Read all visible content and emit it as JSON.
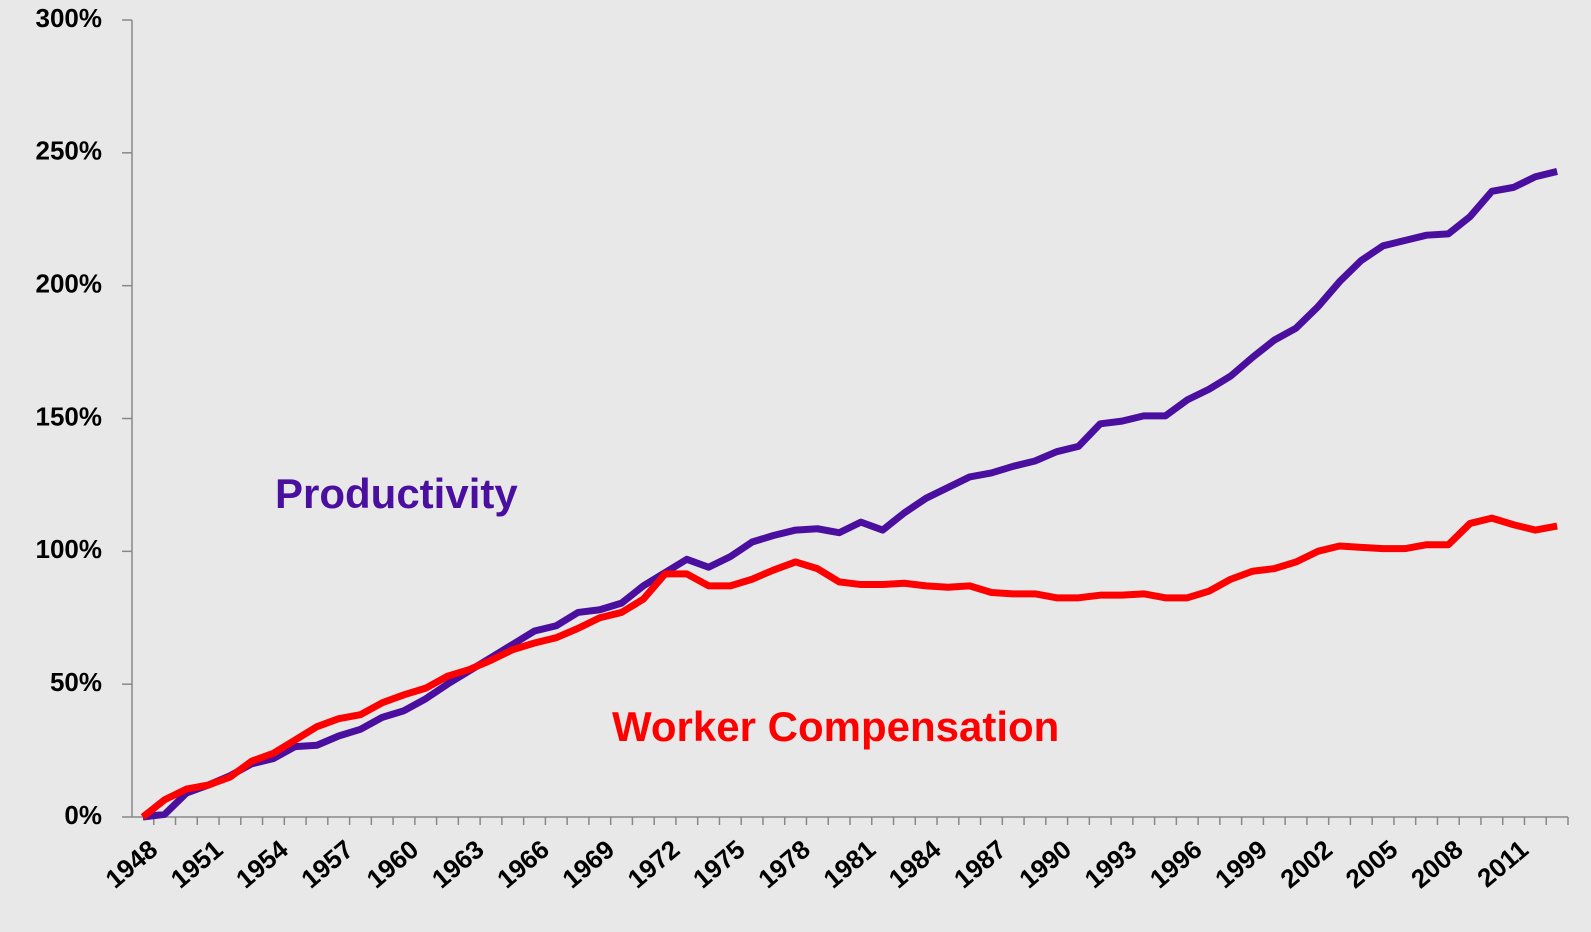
{
  "chart_data": {
    "type": "line",
    "categories": [
      "1948",
      null,
      null,
      "1951",
      null,
      null,
      "1954",
      null,
      null,
      "1957",
      null,
      null,
      "1960",
      null,
      null,
      "1963",
      null,
      null,
      "1966",
      null,
      null,
      "1969",
      null,
      null,
      "1972",
      null,
      null,
      "1975",
      null,
      null,
      "1978",
      null,
      null,
      "1981",
      null,
      null,
      "1984",
      null,
      null,
      "1987",
      null,
      null,
      "1990",
      null,
      null,
      "1993",
      null,
      null,
      "1996",
      null,
      null,
      "1999",
      null,
      null,
      "2002",
      null,
      null,
      "2005",
      null,
      null,
      "2008",
      null,
      null,
      "2011",
      null,
      null
    ],
    "series": [
      {
        "name": "Productivity",
        "color": "#4b0fa0",
        "values": [
          0,
          1,
          9,
          12,
          15.5,
          20,
          22,
          26.5,
          27,
          30.5,
          33,
          37.5,
          40,
          44.5,
          50,
          55,
          60,
          65,
          70,
          72,
          77,
          78,
          80.5,
          87,
          92,
          97,
          94,
          98,
          103.5,
          106,
          108,
          108.5,
          107,
          111,
          108,
          114.5,
          120,
          124,
          128,
          129.5,
          132,
          134,
          137.5,
          139.5,
          148,
          149,
          151,
          151,
          157,
          161,
          166,
          173,
          179.5,
          184,
          192,
          201.5,
          209.5,
          215,
          217,
          219,
          219.5,
          226,
          235.5,
          237,
          241,
          243
        ]
      },
      {
        "name": "Worker Compensation",
        "color": "#ff0000",
        "values": [
          0,
          6.5,
          10.5,
          12,
          15,
          21,
          24,
          29,
          34,
          37,
          38.5,
          43,
          46,
          48.5,
          53,
          55.5,
          59,
          63,
          65.5,
          67.5,
          71,
          75,
          77,
          82,
          91.5,
          91.5,
          87,
          87,
          89.5,
          93,
          96,
          93.5,
          88.5,
          87.5,
          87.5,
          88,
          87,
          86.5,
          87,
          84.5,
          84,
          84,
          82.5,
          82.5,
          83.5,
          83.5,
          84,
          82.5,
          82.5,
          85,
          89.5,
          92.5,
          93.5,
          96,
          100,
          102,
          101.5,
          101,
          101,
          102.5,
          102.5,
          110.5,
          112.5,
          110,
          108,
          109.5
        ]
      }
    ],
    "ylim": [
      0,
      300
    ],
    "yticks": [
      {
        "value": 0,
        "label": "0%"
      },
      {
        "value": 50,
        "label": "50%"
      },
      {
        "value": 100,
        "label": "100%"
      },
      {
        "value": 150,
        "label": "150%"
      },
      {
        "value": 200,
        "label": "200%"
      },
      {
        "value": 250,
        "label": "250%"
      },
      {
        "value": 300,
        "label": "300%"
      }
    ],
    "grid": false
  }
}
